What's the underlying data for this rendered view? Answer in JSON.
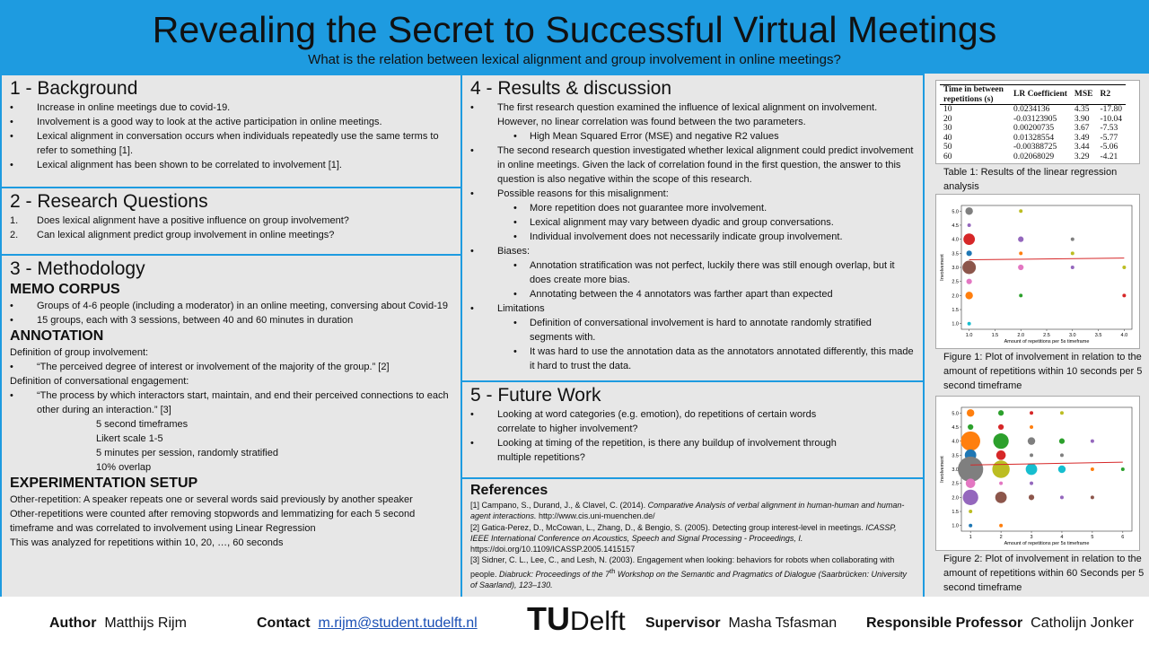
{
  "header": {
    "title": "Revealing the Secret to Successful Virtual Meetings",
    "subtitle": "What is the relation between lexical alignment and group involvement in online meetings?"
  },
  "sections": [
    {
      "heading": "1 - Background",
      "blocks": [
        {
          "bullet": "•",
          "text": "Increase in online meetings due to covid-19."
        },
        {
          "bullet": "•",
          "text": "Involvement is a good way to look at the active participation in online meetings."
        },
        {
          "bullet": "•",
          "text": "Lexical alignment in conversation occurs when individuals repeatedly use the same terms to refer to something [1]."
        },
        {
          "bullet": "•",
          "text": "Lexical alignment has been shown to be correlated to involvement [1]."
        }
      ]
    },
    {
      "heading": "2 - Research Questions",
      "blocks": [
        {
          "number": "1.",
          "text": "Does lexical alignment have a positive influence on group involvement?"
        },
        {
          "number": "2.",
          "text": "Can lexical alignment predict group involvement in online meetings?"
        }
      ]
    },
    {
      "heading": "3 - Methodology",
      "blocks": [
        {
          "subheading": "MEMO CORPUS"
        },
        {
          "bullet": "•",
          "text": "Groups of 4-6 people (including a moderator) in an online meeting, conversing about Covid-19"
        },
        {
          "bullet": "•",
          "text": "15 groups, each with 3 sessions, between 40 and 60 minutes in duration"
        },
        {
          "subheading": "ANNOTATION"
        },
        {
          "para": "Definition of group involvement:"
        },
        {
          "bullet": "•",
          "text": "“The perceived degree of interest or involvement of the majority of the group.” [2]"
        },
        {
          "para": "Definition of conversational engagement:"
        },
        {
          "bullet": "•",
          "text": "“The process by which interactors start, maintain, and end their perceived connections to each other during an interaction.” [3]"
        },
        {
          "indent": "5 second timeframes"
        },
        {
          "indent": "Likert scale 1-5"
        },
        {
          "indent": "5 minutes per session, randomly stratified"
        },
        {
          "indent": "10% overlap"
        },
        {
          "subheading": "EXPERIMENTATION SETUP"
        },
        {
          "para": "Other-repetition: A speaker repeats one or several words said previously by another speaker"
        },
        {
          "para": "Other-repetitions were counted after removing stopwords and lemmatizing for each 5 second timeframe and was correlated to involvement using Linear Regression"
        },
        {
          "para": "This was analyzed for repetitions within 10, 20, …, 60 seconds"
        }
      ]
    },
    {
      "heading": "4 - Results & discussion",
      "blocks": [
        {
          "bullet": "•",
          "text": "The first research question examined the influence of lexical alignment on involvement. However, no linear correlation was found between the two parameters."
        },
        {
          "subbullet": "•",
          "text": "High Mean Squared Error (MSE) and negative R2 values"
        },
        {
          "bullet": "•",
          "text": "The second research question investigated whether lexical alignment could predict involvement in online meetings. Given the lack of correlation found in the first question, the answer to this question is also negative within the scope of this research."
        },
        {
          "bullet": "•",
          "text": "Possible reasons for this misalignment:"
        },
        {
          "subbullet": "•",
          "text": "More repetition does not guarantee more involvement."
        },
        {
          "subbullet": "•",
          "text": "Lexical alignment may vary between dyadic and group conversations."
        },
        {
          "subbullet": "•",
          "text": "Individual involvement does not necessarily indicate group involvement."
        },
        {
          "bullet": "•",
          "text": "Biases:"
        },
        {
          "subbullet": "•",
          "text": "Annotation stratification was not perfect, luckily there was still enough overlap, but it does create more bias."
        },
        {
          "subbullet": "•",
          "text": "Annotating between the 4 annotators was farther apart than expected"
        },
        {
          "bullet": "•",
          "text": "Limitations"
        },
        {
          "subbullet": "•",
          "text": "Definition of conversational involvement is hard to annotate randomly stratified segments with."
        },
        {
          "subbullet": "•",
          "text": "It was hard to use the annotation data as the annotators annotated differently, this made it hard to trust the data."
        }
      ]
    },
    {
      "heading": "5 - Future Work",
      "blocks": [
        {
          "bullet": "•",
          "text": "Looking at word categories (e.g. emotion), do repetitions of certain words correlate to higher involvement?"
        },
        {
          "bullet": "•",
          "text": "Looking at timing of the repetition, is there any buildup of involvement through multiple repetitions?"
        }
      ]
    }
  ],
  "references": {
    "heading": "References",
    "items": [
      [
        {
          "text": "[1] Campano, S., Durand, J., & Clavel, C. (2014). "
        },
        {
          "italic": "Comparative Analysis of verbal alignment in human-human and human-agent interactions."
        },
        {
          "text": " http://www.cis.uni-muenchen.de/"
        }
      ],
      [
        {
          "text": "[2] Gatica-Perez, D., McCowan, L., Zhang, D., & Bengio, S. (2005). Detecting group interest-level in meetings. "
        },
        {
          "italic": "ICASSP, IEEE International Conference on Acoustics, Speech and Signal Processing - Proceedings, I."
        },
        {
          "text": " https://doi.org/10.1109/ICASSP.2005.1415157"
        }
      ],
      [
        {
          "text": "[3] Sidner, C. L., Lee, C., and Lesh, N. (2003). Engagement when looking: behaviors for robots when collaborating with people. "
        },
        {
          "italic": "Diabruck: Proceedings of the 7"
        },
        {
          "sup": "th"
        },
        {
          "italic": " Workshop on the Semantic and Pragmatics of Dialogue (Saarbrücken: University of Saarland), 123–130."
        }
      ]
    ]
  },
  "table": {
    "header": [
      "Time in between repetitions (s)",
      "LR Coefficient",
      "MSE",
      "R2"
    ],
    "rows": [
      [
        "10",
        "0.0234136",
        "4.35",
        "-17.80"
      ],
      [
        "20",
        "-0.03123905",
        "3.90",
        "-10.04"
      ],
      [
        "30",
        "0.00200735",
        "3.67",
        "-7.53"
      ],
      [
        "40",
        "0.01328554",
        "3.49",
        "-5.77"
      ],
      [
        "50",
        "-0.00388725",
        "3.44",
        "-5.06"
      ],
      [
        "60",
        "0.02068029",
        "3.29",
        "-4.21"
      ]
    ],
    "caption": "Table 1: Results of the linear regression analysis"
  },
  "figures": [
    {
      "type": "scatter",
      "caption": "Figure 1: Plot of involvement in relation to the amount of repetitions within 10 seconds per 5 second timeframe",
      "xlabel": "Amount of repetitions per 5s timeframe",
      "ylabel": "Involvement",
      "xlim": [
        0.85,
        4.15
      ],
      "ylim": [
        0.8,
        5.2
      ],
      "xticks": [
        {
          "value": 1,
          "label": "1.0"
        },
        1.5,
        {
          "value": 2,
          "label": "2.0"
        },
        2.5,
        {
          "value": 3,
          "label": "3.0"
        },
        3.5,
        {
          "value": 4,
          "label": "4.0"
        }
      ],
      "yticks": [
        {
          "value": 1,
          "label": "1.0"
        },
        1.5,
        {
          "value": 2,
          "label": "2.0"
        },
        2.5,
        {
          "value": 3,
          "label": "3.0"
        },
        3.5,
        {
          "value": 4,
          "label": "4.0"
        },
        4.5,
        {
          "value": 5,
          "label": "5.0"
        }
      ],
      "x": [
        1,
        1,
        1,
        1,
        1,
        1,
        1,
        1,
        2,
        2,
        2,
        2,
        2,
        3,
        3,
        3,
        4,
        4
      ],
      "y": [
        5,
        4.5,
        4,
        3.5,
        3,
        2.5,
        2,
        1,
        5,
        4,
        3.5,
        3,
        2,
        4,
        3.5,
        3,
        3,
        2
      ],
      "sizes": [
        3,
        1,
        5,
        2,
        6,
        2,
        3,
        1,
        1,
        2,
        1,
        2,
        1,
        1,
        1,
        1,
        1,
        1
      ],
      "colors": [
        "#7f7f7f",
        "#9467bd",
        "#d62728",
        "#1f77b4",
        "#8c564b",
        "#e377c2",
        "#ff7f0e",
        "#17becf",
        "#bcbd22",
        "#9467bd",
        "#ff7f0e",
        "#e377c2",
        "#2ca02c",
        "#7f7f7f",
        "#bcbd22",
        "#9467bd",
        "#bcbd22",
        "#d62728"
      ],
      "fit": {
        "x": [
          1,
          4
        ],
        "y": [
          3.27,
          3.33
        ],
        "color": "#d62728"
      }
    },
    {
      "type": "scatter",
      "caption": "Figure 2: Plot of involvement in relation to the amount of repetitions within 60 Seconds per 5 second timeframe",
      "xlabel": "Amount of repetitions per 5s timeframe",
      "ylabel": "Involvement",
      "xlim": [
        0.7,
        6.3
      ],
      "ylim": [
        0.8,
        5.2
      ],
      "xticks": [
        1,
        2,
        3,
        4,
        5,
        6
      ],
      "yticks": [
        {
          "value": 1,
          "label": "1.0"
        },
        1.5,
        {
          "value": 2,
          "label": "2.0"
        },
        2.5,
        {
          "value": 3,
          "label": "3.0"
        },
        3.5,
        {
          "value": 4,
          "label": "4.0"
        },
        4.5,
        {
          "value": 5,
          "label": "5.0"
        }
      ],
      "x": [
        1,
        1,
        1,
        1,
        1,
        1,
        1,
        1,
        1,
        2,
        2,
        2,
        2,
        2,
        2,
        2,
        2,
        3,
        3,
        3,
        3,
        3,
        3,
        3,
        4,
        4,
        4,
        4,
        4,
        5,
        5,
        5,
        6
      ],
      "y": [
        5,
        4.5,
        4,
        3.5,
        3,
        2.5,
        2,
        1.5,
        1,
        5,
        4.5,
        4,
        3.5,
        3,
        2.5,
        2,
        1,
        5,
        4.5,
        4,
        3.5,
        3,
        2.5,
        2,
        5,
        4,
        3.5,
        3,
        2,
        4,
        3,
        2,
        3
      ],
      "sizes": [
        3,
        2,
        9,
        5,
        12,
        4,
        7,
        1,
        1,
        2,
        2,
        7,
        4,
        8,
        1,
        5,
        1,
        1,
        1,
        3,
        1,
        5,
        1,
        2,
        1,
        2,
        1,
        3,
        1,
        1,
        1,
        1,
        1
      ],
      "colors": [
        "#ff7f0e",
        "#2ca02c",
        "#ff7f0e",
        "#1f77b4",
        "#7f7f7f",
        "#e377c2",
        "#9467bd",
        "#bcbd22",
        "#1f77b4",
        "#2ca02c",
        "#d62728",
        "#2ca02c",
        "#d62728",
        "#bcbd22",
        "#e377c2",
        "#8c564b",
        "#ff7f0e",
        "#d62728",
        "#ff7f0e",
        "#7f7f7f",
        "#7f7f7f",
        "#17becf",
        "#9467bd",
        "#8c564b",
        "#bcbd22",
        "#2ca02c",
        "#7f7f7f",
        "#17becf",
        "#9467bd",
        "#9467bd",
        "#ff7f0e",
        "#8c564b",
        "#2ca02c"
      ],
      "fit": {
        "x": [
          1,
          6
        ],
        "y": [
          3.15,
          3.25
        ],
        "color": "#d62728"
      }
    }
  ],
  "footer": {
    "author_label": "Author",
    "author": "Matthijs Rijm",
    "contact_label": "Contact",
    "email": "m.rijm@student.tudelft.nl",
    "logo_tu": "TU",
    "logo_delft": "Delft",
    "supervisor_label": "Supervisor",
    "supervisor": "Masha Tsfasman",
    "professor_label": "Responsible Professor",
    "professor": "Catholijn Jonker"
  }
}
